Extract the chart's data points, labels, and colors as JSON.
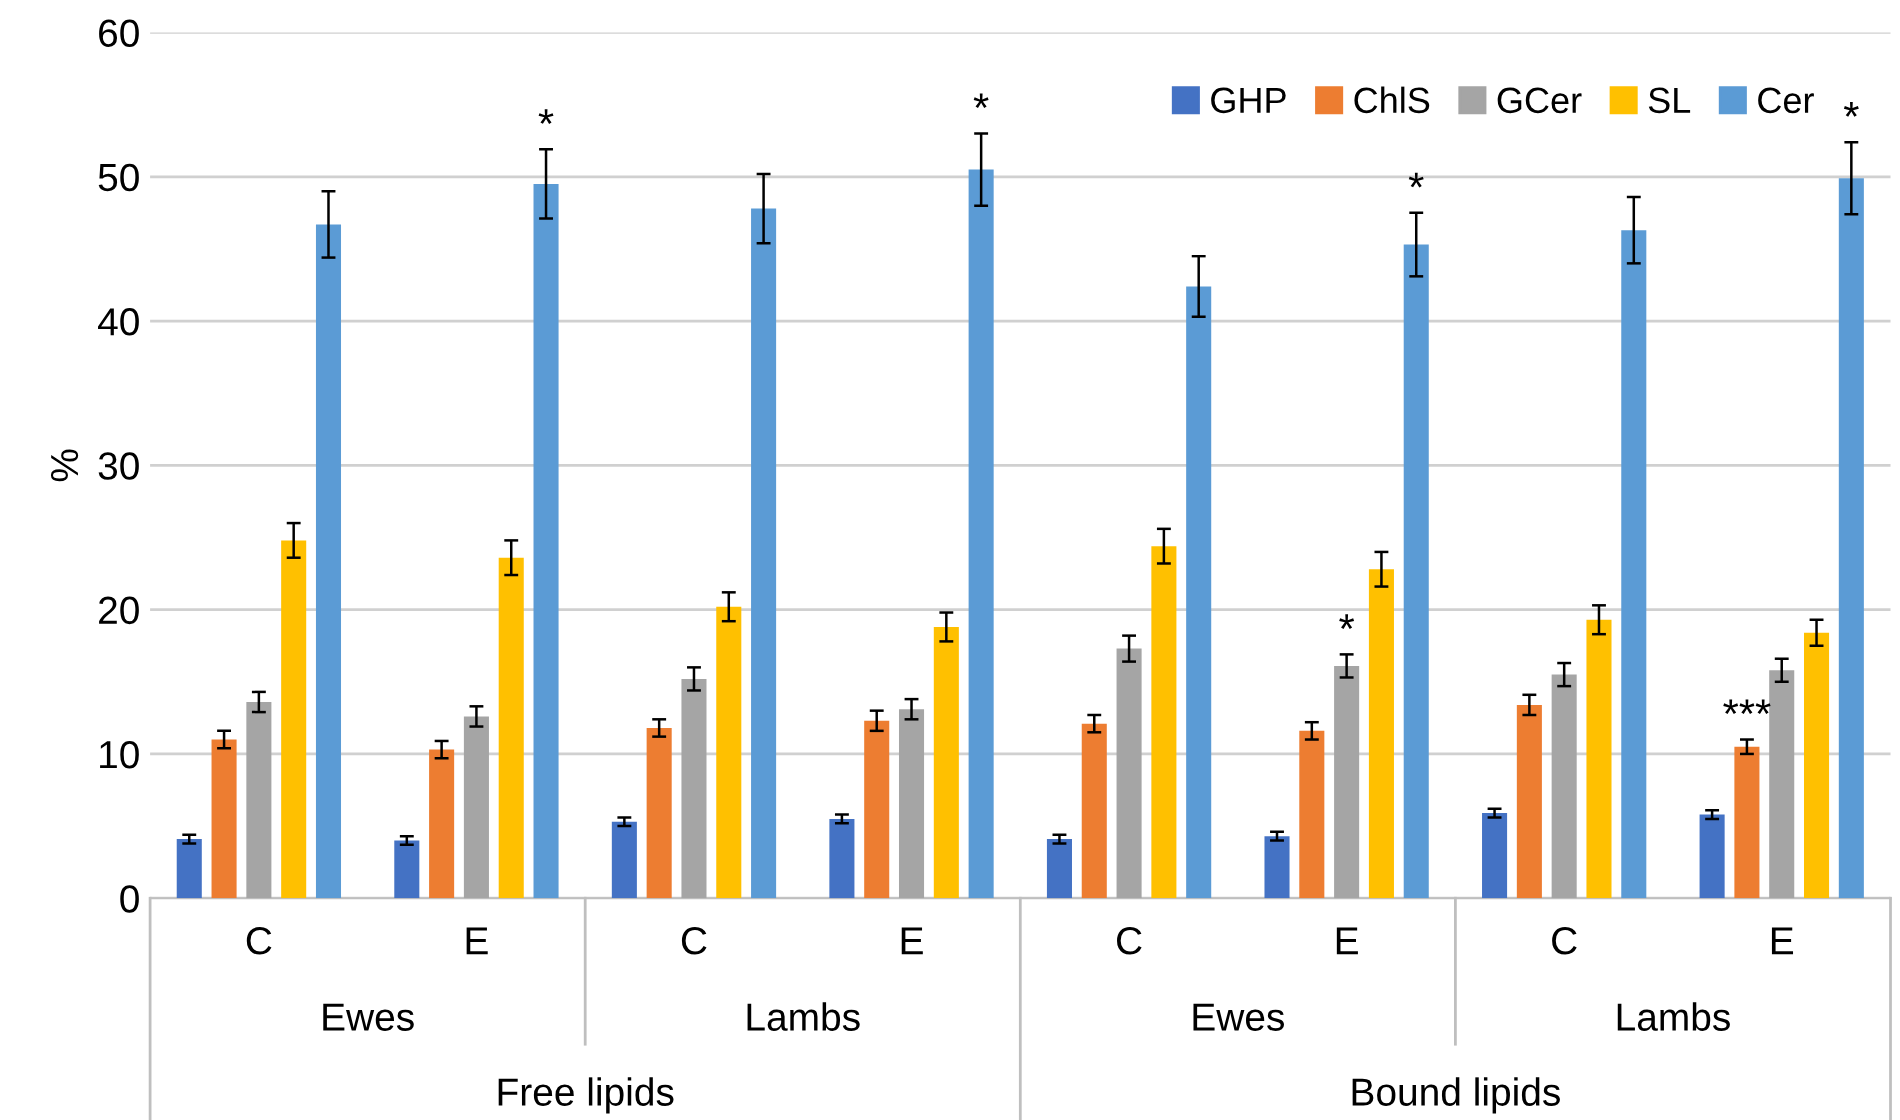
{
  "chart_data": {
    "type": "bar",
    "ylabel": "%",
    "ylim": [
      0,
      60
    ],
    "yticks": [
      0,
      10,
      20,
      30,
      40,
      50,
      60
    ],
    "grid": "y",
    "legend": "top right",
    "categories": [
      "C",
      "E",
      "C",
      "E",
      "C",
      "E",
      "C",
      "E"
    ],
    "annotations": [
      "Ewes",
      "Lambs",
      "Ewes",
      "Lambs",
      "Free lipids",
      "Bound lipids"
    ],
    "series": [
      {
        "name": "GHP",
        "color": "#4472c4",
        "values": [
          4.1,
          4.0,
          5.3,
          5.5,
          4.1,
          4.3,
          5.9,
          5.8
        ],
        "errors": [
          0.3,
          0.3,
          0.3,
          0.3,
          0.3,
          0.3,
          0.3,
          0.3
        ]
      },
      {
        "name": "ChlS",
        "color": "#ed7d31",
        "values": [
          11.0,
          10.3,
          11.8,
          12.3,
          12.1,
          11.6,
          13.4,
          10.5
        ],
        "errors": [
          0.6,
          0.6,
          0.6,
          0.7,
          0.6,
          0.6,
          0.7,
          0.5
        ],
        "value_labels": [
          null,
          null,
          null,
          null,
          null,
          null,
          null,
          "***"
        ]
      },
      {
        "name": "GCer",
        "color": "#a5a5a5",
        "values": [
          13.6,
          12.6,
          15.2,
          13.1,
          17.3,
          16.1,
          15.5,
          15.8
        ],
        "errors": [
          0.7,
          0.7,
          0.8,
          0.7,
          0.9,
          0.8,
          0.8,
          0.8
        ],
        "value_labels": [
          null,
          null,
          null,
          null,
          null,
          "*",
          null,
          null
        ]
      },
      {
        "name": "SL",
        "color": "#ffc000",
        "values": [
          24.8,
          23.6,
          20.2,
          18.8,
          24.4,
          22.8,
          19.3,
          18.4
        ],
        "errors": [
          1.2,
          1.2,
          1.0,
          1.0,
          1.2,
          1.2,
          1.0,
          0.9
        ]
      },
      {
        "name": "Cer",
        "color": "#5b9bd5",
        "values": [
          46.7,
          49.5,
          47.8,
          50.5,
          42.4,
          45.3,
          46.3,
          49.9
        ],
        "errors": [
          2.3,
          2.4,
          2.4,
          2.5,
          2.1,
          2.2,
          2.3,
          2.5
        ],
        "value_labels": [
          null,
          "*",
          null,
          "*",
          null,
          "*",
          null,
          "*"
        ]
      }
    ]
  }
}
